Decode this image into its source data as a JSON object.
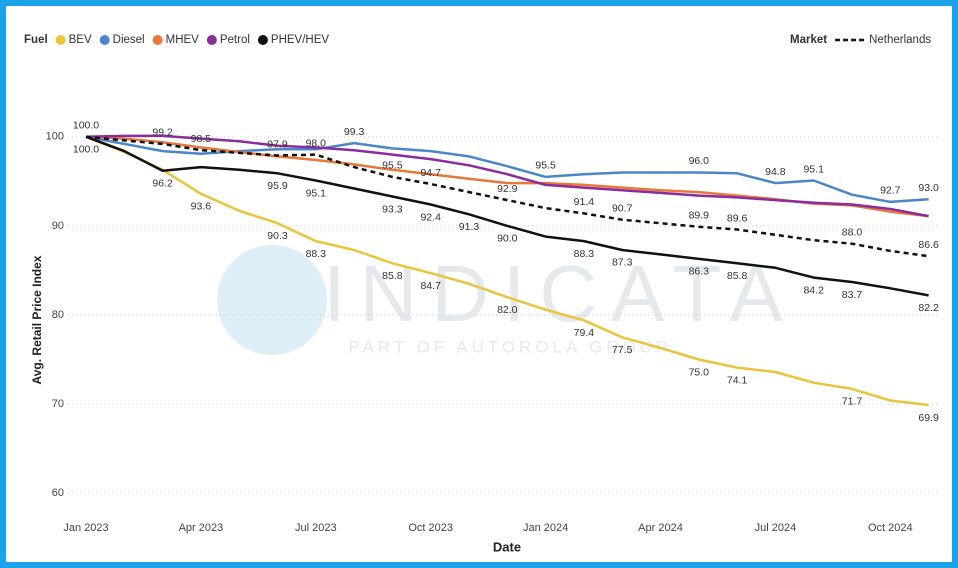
{
  "chart_data": {
    "type": "line",
    "y_label": "Avg. Retail Price Index",
    "x_label": "Date",
    "watermark": "INDICATA",
    "watermark_sub": "PART OF AUTOROLA GROUP",
    "legend_titles": [
      "Fuel",
      "Market"
    ],
    "categories": [
      "Jan 2023",
      null,
      null,
      "Apr 2023",
      null,
      null,
      "Jul 2023",
      null,
      null,
      "Oct 2023",
      null,
      null,
      "Jan 2024",
      null,
      null,
      "Apr 2024",
      null,
      null,
      "Jul 2024",
      null,
      null,
      "Oct 2024",
      null
    ],
    "ylim": [
      58,
      102
    ],
    "yticks": [
      60,
      70,
      80,
      90,
      100
    ],
    "grid": true,
    "series": [
      {
        "name": "BEV",
        "color": "#e8c53a",
        "legend": 0,
        "values": [
          100,
          98.3,
          96.3,
          93.6,
          91.7,
          90.3,
          88.3,
          87.3,
          85.8,
          84.7,
          83.5,
          82.0,
          80.6,
          79.4,
          77.5,
          76.3,
          75.0,
          74.1,
          73.6,
          72.4,
          71.7,
          70.4,
          69.9
        ],
        "value_labels": [
          "100.0",
          null,
          null,
          "93.6",
          null,
          "90.3",
          "88.3",
          null,
          "85.8",
          "84.7",
          null,
          "82.0",
          null,
          "79.4",
          "77.5",
          null,
          "75.0",
          "74.1",
          null,
          null,
          "71.7",
          null,
          "69.9"
        ]
      },
      {
        "name": "Diesel",
        "color": "#4a86c8",
        "legend": 0,
        "values": [
          100,
          99.2,
          98.4,
          98.1,
          98.4,
          98.6,
          98.6,
          99.3,
          98.7,
          98.4,
          97.8,
          96.7,
          95.5,
          95.8,
          96.0,
          96.0,
          96.0,
          95.9,
          94.8,
          95.1,
          93.5,
          92.7,
          93.0
        ],
        "value_labels": [
          null,
          null,
          null,
          null,
          null,
          null,
          null,
          "99.3",
          null,
          null,
          null,
          null,
          "95.5",
          null,
          null,
          null,
          "96.0",
          null,
          "94.8",
          "95.1",
          null,
          "92.7",
          "93.0"
        ]
      },
      {
        "name": "MHEV",
        "color": "#e8783a",
        "legend": 0,
        "values": [
          100,
          99.8,
          99.4,
          98.8,
          98.3,
          97.8,
          97.4,
          96.9,
          96.3,
          95.8,
          95.3,
          94.8,
          94.8,
          94.6,
          94.3,
          94.0,
          93.8,
          93.4,
          93.0,
          92.5,
          92.3,
          91.6,
          91.1
        ]
      },
      {
        "name": "Petrol",
        "color": "#8a2c9e",
        "legend": 0,
        "values": [
          100,
          100.1,
          100.1,
          99.8,
          99.5,
          99.0,
          98.8,
          98.5,
          98.0,
          97.5,
          96.8,
          95.8,
          94.6,
          94.3,
          94.0,
          93.7,
          93.4,
          93.2,
          92.9,
          92.6,
          92.4,
          91.9,
          91.1
        ]
      },
      {
        "name": "PHEV/HEV",
        "color": "#111111",
        "legend": 0,
        "values": [
          100,
          98.4,
          96.2,
          96.6,
          96.3,
          95.9,
          95.1,
          94.2,
          93.3,
          92.4,
          91.3,
          90.0,
          88.8,
          88.3,
          87.3,
          86.8,
          86.3,
          85.8,
          85.3,
          84.2,
          83.7,
          83.0,
          82.2
        ],
        "value_labels": [
          null,
          null,
          "96.2",
          null,
          null,
          "95.9",
          "95.1",
          null,
          "93.3",
          "92.4",
          "91.3",
          "90.0",
          null,
          "88.3",
          "87.3",
          null,
          "86.3",
          "85.8",
          null,
          "84.2",
          "83.7",
          null,
          "82.2"
        ]
      },
      {
        "name": "Netherlands",
        "color": "#111111",
        "dashed": true,
        "legend": 1,
        "values": [
          100,
          99.6,
          99.2,
          98.5,
          98.2,
          97.9,
          98.0,
          96.6,
          95.5,
          94.7,
          93.8,
          92.9,
          92.0,
          91.4,
          90.7,
          90.3,
          89.9,
          89.6,
          89.0,
          88.4,
          88.0,
          87.2,
          86.6
        ],
        "value_labels": [
          "100.0",
          null,
          "99.2",
          "98.5",
          null,
          "97.9",
          "98.0",
          null,
          "95.5",
          "94.7",
          null,
          "92.9",
          null,
          "91.4",
          "90.7",
          null,
          "89.9",
          "89.6",
          null,
          null,
          "88.0",
          null,
          "86.6"
        ]
      }
    ]
  }
}
